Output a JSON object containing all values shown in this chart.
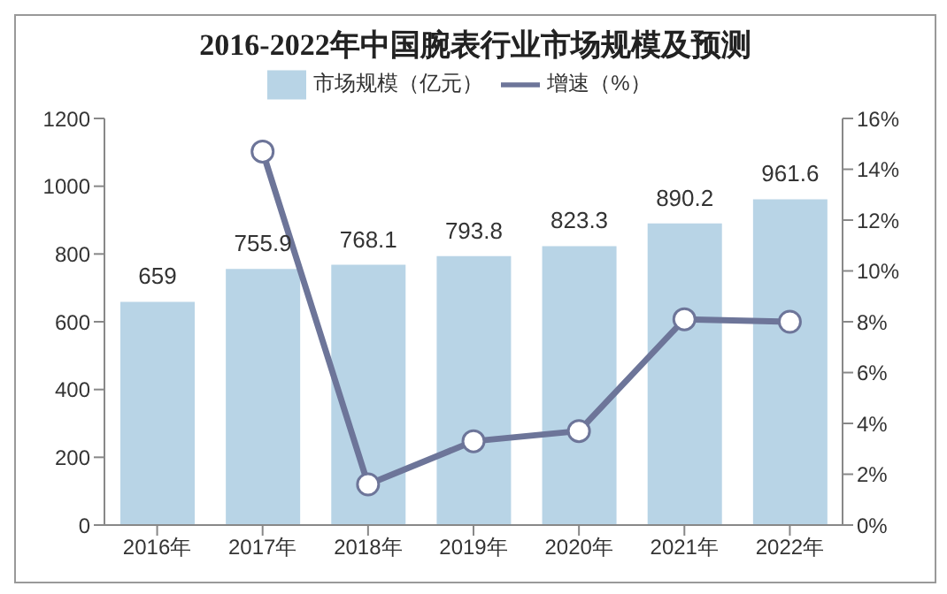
{
  "chart_data": {
    "type": "bar",
    "title": "2016-2022年中国腕表行业市场规模及预测",
    "categories": [
      "2016年",
      "2017年",
      "2018年",
      "2019年",
      "2020年",
      "2021年",
      "2022年"
    ],
    "series": [
      {
        "name": "市场规模（亿元）",
        "color": "#b8d4e6",
        "values": [
          659,
          755.9,
          768.1,
          793.8,
          823.3,
          890.2,
          961.6
        ],
        "value_labels": [
          "659",
          "755.9",
          "768.1",
          "793.8",
          "823.3",
          "890.2",
          "961.6"
        ]
      },
      {
        "name": "增速（%）",
        "type": "line",
        "axis": "y2",
        "color": "#6d7599",
        "values": [
          null,
          14.7,
          1.6,
          3.3,
          3.7,
          8.1,
          8.0
        ]
      }
    ],
    "ylim": [
      0,
      1200
    ],
    "yticks": [
      0,
      200,
      400,
      600,
      800,
      1000,
      1200
    ],
    "y2lim": [
      0,
      16
    ],
    "y2ticks": [
      {
        "value": 0,
        "label": "0%"
      },
      {
        "value": 2,
        "label": "2%"
      },
      {
        "value": 4,
        "label": "4%"
      },
      {
        "value": 6,
        "label": "6%"
      },
      {
        "value": 8,
        "label": "8%"
      },
      {
        "value": 10,
        "label": "10%"
      },
      {
        "value": 12,
        "label": "12%"
      },
      {
        "value": 14,
        "label": "14%"
      },
      {
        "value": 16,
        "label": "16%"
      }
    ],
    "grid": false,
    "legend": "top",
    "marker": "circle",
    "line_style": "solid"
  }
}
